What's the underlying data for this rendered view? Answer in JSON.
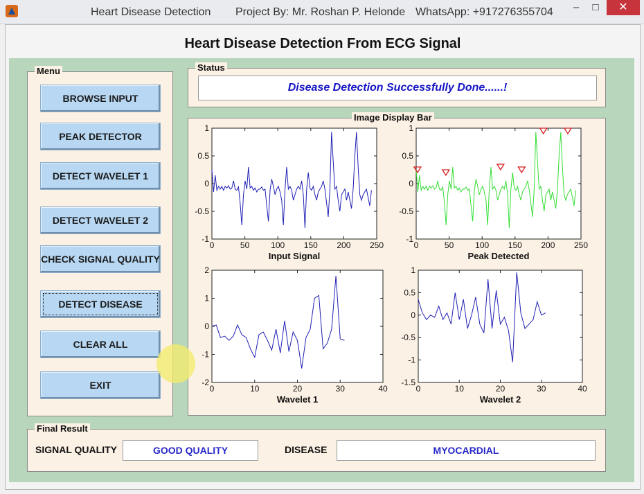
{
  "window": {
    "title": "Heart Disease Detection",
    "project": "Project By: Mr. Roshan P. Helonde",
    "whatsapp": "WhatsApp: +917276355704",
    "minimize": "–",
    "maximize": "□",
    "close": "✕"
  },
  "app_title": "Heart Disease Detection From ECG Signal",
  "menu": {
    "label": "Menu",
    "buttons": [
      "BROWSE INPUT",
      "PEAK DETECTOR",
      "DETECT WAVELET 1",
      "DETECT WAVELET 2",
      "CHECK SIGNAL QUALITY",
      "DETECT DISEASE",
      "CLEAR ALL",
      "EXIT"
    ]
  },
  "status": {
    "label": "Status",
    "text": "Disease Detection Successfully Done......!"
  },
  "display": {
    "label": "Image Display Bar"
  },
  "final": {
    "label": "Final Result",
    "signal_quality_label": "SIGNAL QUALITY",
    "signal_quality_value": "GOOD QUALITY",
    "disease_label": "DISEASE",
    "disease_value": "MYOCARDIAL"
  },
  "colors": {
    "accent_blue": "#1515c4",
    "panel_green": "#b8d6bc",
    "panel_cream": "#fbf1e4",
    "button_blue": "#b7d7f3",
    "line_blue": "#1f1fb4",
    "line_green": "#33dd33",
    "marker_red": "#d42020"
  },
  "chart_data": [
    {
      "type": "line",
      "xlabel": "Input Signal",
      "xlim": [
        0,
        250
      ],
      "ylim": [
        -1,
        1
      ],
      "xticks": [
        0,
        50,
        100,
        150,
        200,
        250
      ],
      "yticks": [
        -1,
        -0.5,
        0,
        0.5,
        1
      ],
      "color": "#1f1fb4",
      "y": [
        0.25,
        -0.15,
        0.15,
        -0.12,
        -0.05,
        -0.1,
        -0.05,
        -0.12,
        -0.05,
        -0.08,
        -0.04,
        -0.1,
        -0.08,
        0.05,
        -0.1,
        -0.12,
        -0.06,
        -0.35,
        -0.75,
        -0.2,
        0.05,
        -0.1,
        0.3,
        -0.08,
        -0.05,
        -0.12,
        -0.08,
        -0.15,
        -0.1,
        -0.1,
        -0.06,
        -0.12,
        -0.1,
        -0.4,
        -0.68,
        -0.12,
        0.08,
        -0.05,
        -0.2,
        -0.1,
        -0.05,
        -0.15,
        -0.3,
        -0.75,
        -0.1,
        0.3,
        -0.1,
        -0.05,
        -0.12,
        -0.3,
        -0.2,
        -0.1,
        -0.05,
        -0.1,
        0.05,
        -0.2,
        -0.8,
        -0.1,
        0.2,
        -0.08,
        -0.12,
        -0.05,
        -0.2,
        -0.3,
        -0.15,
        -0.1,
        -0.05,
        0.05,
        -0.1,
        -0.35,
        -0.6,
        -0.1,
        0.93,
        0.4,
        -0.1,
        -0.05,
        -0.3,
        -0.5,
        -0.2,
        -0.15,
        -0.1,
        -0.3,
        -0.15,
        -0.3,
        -0.45,
        -0.1,
        0.5,
        0.93,
        0.3,
        -0.2,
        -0.3,
        -0.2,
        -0.15,
        -0.1,
        -0.25,
        -0.4,
        -0.12
      ]
    },
    {
      "type": "line",
      "xlabel": "Peak Detected",
      "xlim": [
        0,
        250
      ],
      "ylim": [
        -1,
        1
      ],
      "xticks": [
        0,
        50,
        100,
        150,
        200,
        250
      ],
      "yticks": [
        -1,
        -0.5,
        0,
        0.5,
        1
      ],
      "color": "#33dd33",
      "y": [
        0.25,
        -0.15,
        0.15,
        -0.12,
        -0.05,
        -0.1,
        -0.05,
        -0.12,
        -0.05,
        -0.08,
        -0.04,
        -0.1,
        -0.08,
        0.05,
        -0.1,
        -0.12,
        -0.06,
        -0.35,
        -0.75,
        -0.2,
        0.05,
        -0.1,
        0.3,
        -0.08,
        -0.05,
        -0.12,
        -0.08,
        -0.15,
        -0.1,
        -0.1,
        -0.06,
        -0.12,
        -0.1,
        -0.4,
        -0.68,
        -0.12,
        0.08,
        -0.05,
        -0.2,
        -0.1,
        -0.05,
        -0.15,
        -0.3,
        -0.75,
        -0.1,
        0.3,
        -0.1,
        -0.05,
        -0.12,
        -0.3,
        -0.2,
        -0.1,
        -0.05,
        -0.1,
        0.05,
        -0.2,
        -0.8,
        -0.1,
        0.2,
        -0.08,
        -0.12,
        -0.05,
        -0.2,
        -0.3,
        -0.15,
        -0.1,
        -0.05,
        0.05,
        -0.1,
        -0.35,
        -0.6,
        -0.1,
        0.93,
        0.4,
        -0.1,
        -0.05,
        -0.3,
        -0.5,
        -0.2,
        -0.15,
        -0.1,
        -0.3,
        -0.15,
        -0.3,
        -0.45,
        -0.1,
        0.5,
        0.93,
        0.3,
        -0.2,
        -0.3,
        -0.2,
        -0.15,
        -0.1,
        -0.25,
        -0.4,
        -0.12
      ],
      "peaks": [
        [
          2,
          0.25
        ],
        [
          45,
          0.2
        ],
        [
          128,
          0.3
        ],
        [
          160,
          0.25
        ],
        [
          193,
          0.95
        ],
        [
          230,
          0.95
        ]
      ]
    },
    {
      "type": "line",
      "xlabel": "Wavelet 1",
      "xlim": [
        0,
        40
      ],
      "ylim": [
        -2,
        2
      ],
      "xticks": [
        0,
        10,
        20,
        30,
        40
      ],
      "yticks": [
        -2,
        -1,
        0,
        1,
        2
      ],
      "color": "#1f1fb4",
      "x": [
        0,
        1,
        2,
        3,
        4,
        5,
        6,
        7,
        8,
        9,
        10,
        11,
        12,
        13,
        14,
        15,
        16,
        17,
        18,
        19,
        20,
        21,
        22,
        23,
        24,
        25,
        26,
        27,
        28,
        29,
        30,
        31
      ],
      "y": [
        0,
        0.05,
        -0.4,
        -0.35,
        -0.5,
        -0.35,
        0.05,
        -0.3,
        -0.4,
        -0.8,
        -1.1,
        -0.3,
        -0.2,
        -0.5,
        -0.85,
        -0.1,
        -0.95,
        0.2,
        -0.9,
        -0.2,
        -0.5,
        -1.5,
        -0.4,
        -0.1,
        1,
        1.1,
        -0.8,
        -0.6,
        -0.1,
        1.8,
        -0.45,
        -0.5
      ]
    },
    {
      "type": "line",
      "xlabel": "Wavelet 2",
      "xlim": [
        0,
        40
      ],
      "ylim": [
        -1.5,
        1
      ],
      "xticks": [
        0,
        10,
        20,
        30,
        40
      ],
      "yticks": [
        -1.5,
        -1,
        -0.5,
        0,
        0.5,
        1
      ],
      "color": "#1f1fb4",
      "x": [
        0,
        1,
        2,
        3,
        4,
        5,
        6,
        7,
        8,
        9,
        10,
        11,
        12,
        13,
        14,
        15,
        16,
        17,
        18,
        19,
        20,
        21,
        22,
        23,
        24,
        25,
        26,
        27,
        28,
        29,
        30,
        31
      ],
      "y": [
        0.35,
        0.05,
        -0.1,
        0.0,
        -0.05,
        0.2,
        -0.1,
        0.05,
        -0.2,
        0.5,
        -0.1,
        0.35,
        -0.3,
        0.0,
        0.4,
        -0.2,
        -0.4,
        0.8,
        -0.3,
        0.55,
        -0.2,
        -0.05,
        -0.35,
        -1.05,
        0.95,
        0.05,
        -0.3,
        -0.2,
        -0.1,
        0.3,
        0.0,
        0.05
      ]
    }
  ]
}
